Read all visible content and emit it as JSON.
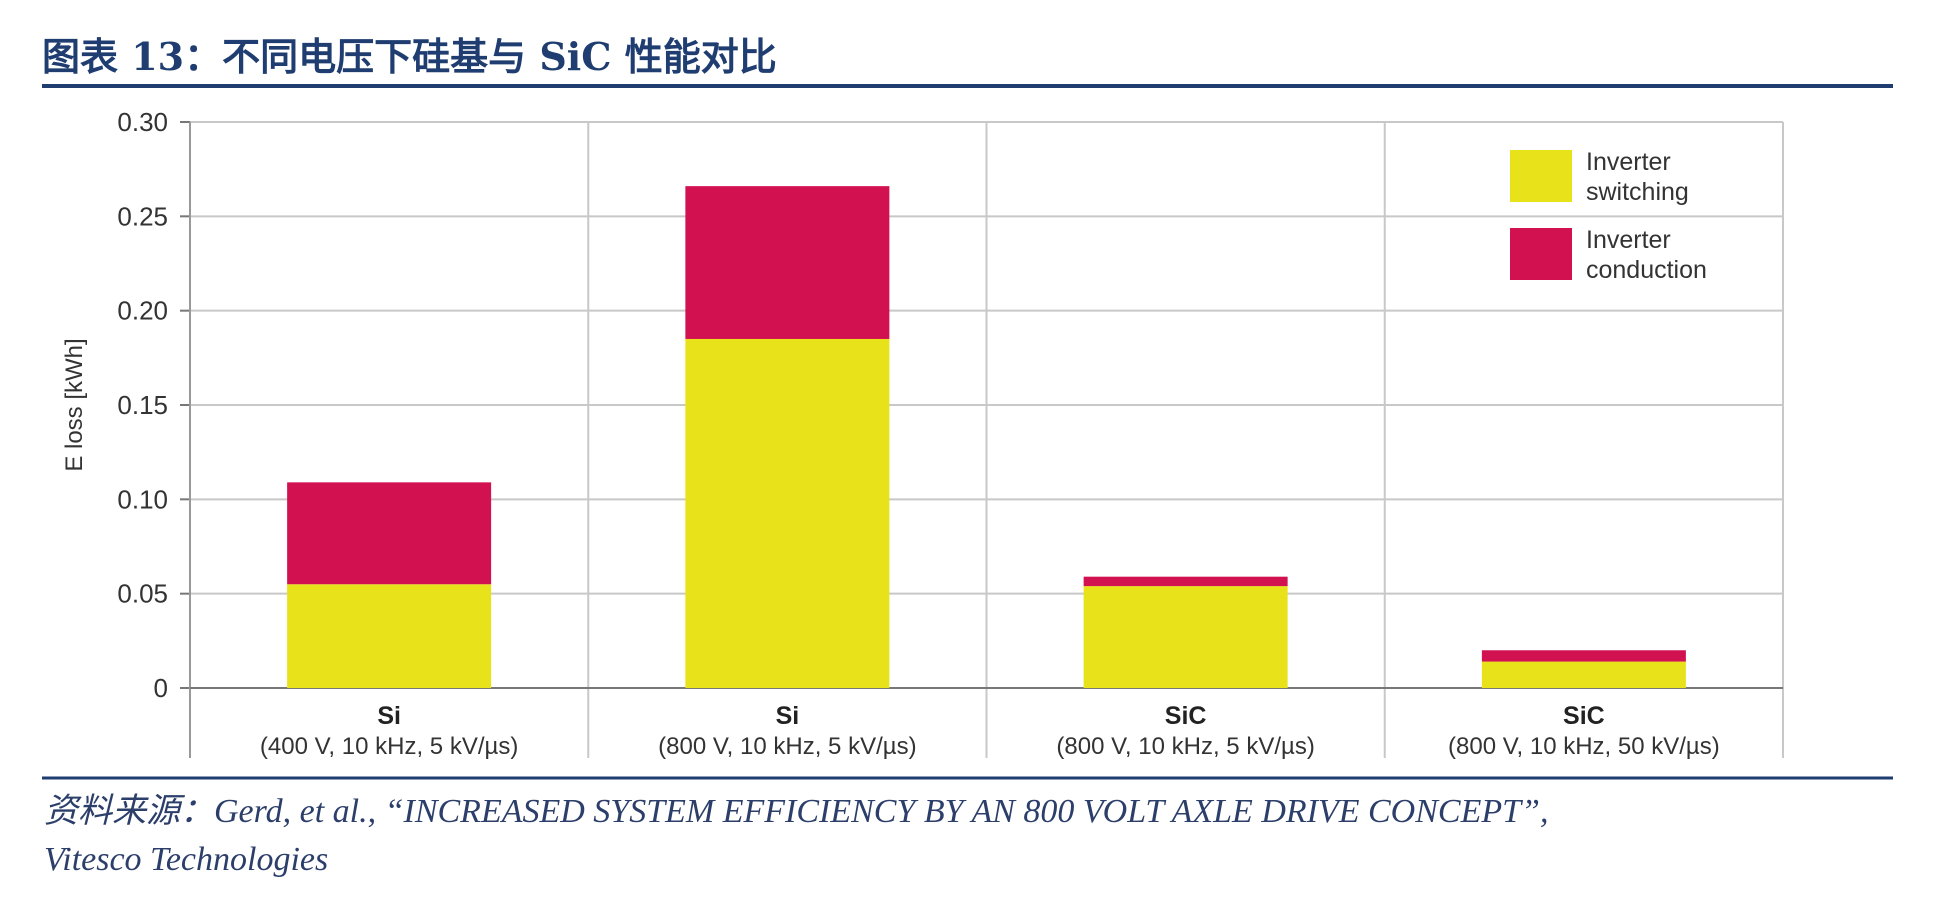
{
  "figure": {
    "title": "图表 13：不同电压下硅基与 SiC 性能对比",
    "source_line1": "资料来源：Gerd, et al., “INCREASED SYSTEM EFFICIENCY BY AN 800 VOLT AXLE DRIVE CONCEPT”,",
    "source_line2": "Vitesco Technologies"
  },
  "colors": {
    "title_blue": "#1f3d70",
    "rule_blue": "#1f3d70",
    "switching": "#e8e21a",
    "conduction": "#d11150",
    "grid": "#c8c8c8"
  },
  "chart_data": {
    "type": "bar",
    "stacked": true,
    "ylabel": "E loss [kWh]",
    "ylim": [
      0,
      0.3
    ],
    "yticks": [
      0,
      0.05,
      0.1,
      0.15,
      0.2,
      0.25,
      0.3
    ],
    "ytick_labels": [
      "0",
      "0.05",
      "0.10",
      "0.15",
      "0.20",
      "0.25",
      "0.30"
    ],
    "grid": true,
    "legend_position": "top-right",
    "categories": [
      {
        "main": "Si",
        "sub": "(400 V, 10 kHz, 5 kV/µs)"
      },
      {
        "main": "Si",
        "sub": "(800 V, 10 kHz, 5 kV/µs)"
      },
      {
        "main": "SiC",
        "sub": "(800 V, 10 kHz, 5 kV/µs)"
      },
      {
        "main": "SiC",
        "sub": "(800 V, 10 kHz, 50 kV/µs)"
      }
    ],
    "series": [
      {
        "name": "Inverter switching",
        "legend_lines": [
          "Inverter",
          "switching"
        ],
        "color_key": "switching",
        "values": [
          0.055,
          0.185,
          0.054,
          0.014
        ]
      },
      {
        "name": "Inverter conduction",
        "legend_lines": [
          "Inverter",
          "conduction"
        ],
        "color_key": "conduction",
        "values": [
          0.054,
          0.081,
          0.005,
          0.006
        ]
      }
    ]
  }
}
